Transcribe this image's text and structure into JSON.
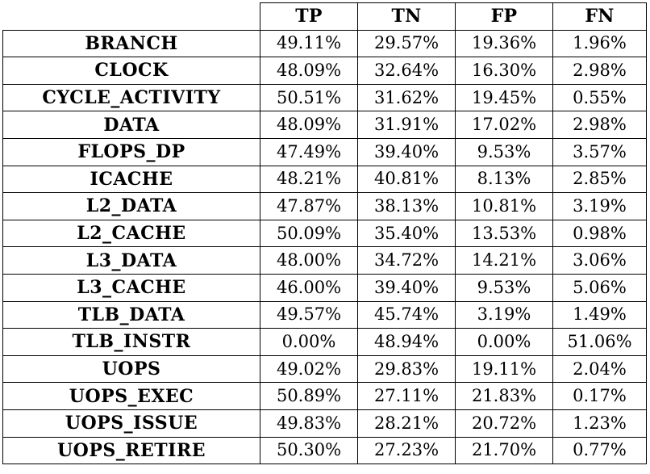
{
  "table": {
    "columns": [
      "",
      "TP",
      "TN",
      "FP",
      "FN"
    ],
    "rows": [
      {
        "metric": "BRANCH",
        "values": [
          "49.11%",
          "29.57%",
          "19.36%",
          "1.96%"
        ]
      },
      {
        "metric": "CLOCK",
        "values": [
          "48.09%",
          "32.64%",
          "16.30%",
          "2.98%"
        ]
      },
      {
        "metric": "CYCLE_ACTIVITY",
        "values": [
          "50.51%",
          "31.62%",
          "19.45%",
          "0.55%"
        ]
      },
      {
        "metric": "DATA",
        "values": [
          "48.09%",
          "31.91%",
          "17.02%",
          "2.98%"
        ]
      },
      {
        "metric": "FLOPS_DP",
        "values": [
          "47.49%",
          "39.40%",
          "9.53%",
          "3.57%"
        ]
      },
      {
        "metric": "ICACHE",
        "values": [
          "48.21%",
          "40.81%",
          "8.13%",
          "2.85%"
        ]
      },
      {
        "metric": "L2_DATA",
        "values": [
          "47.87%",
          "38.13%",
          "10.81%",
          "3.19%"
        ]
      },
      {
        "metric": "L2_CACHE",
        "values": [
          "50.09%",
          "35.40%",
          "13.53%",
          "0.98%"
        ]
      },
      {
        "metric": "L3_DATA",
        "values": [
          "48.00%",
          "34.72%",
          "14.21%",
          "3.06%"
        ]
      },
      {
        "metric": "L3_CACHE",
        "values": [
          "46.00%",
          "39.40%",
          "9.53%",
          "5.06%"
        ]
      },
      {
        "metric": "TLB_DATA",
        "values": [
          "49.57%",
          "45.74%",
          "3.19%",
          "1.49%"
        ]
      },
      {
        "metric": "TLB_INSTR",
        "values": [
          "0.00%",
          "48.94%",
          "0.00%",
          "51.06%"
        ]
      },
      {
        "metric": "UOPS",
        "values": [
          "49.02%",
          "29.83%",
          "19.11%",
          "2.04%"
        ]
      },
      {
        "metric": "UOPS_EXEC",
        "values": [
          "50.89%",
          "27.11%",
          "21.83%",
          "0.17%"
        ]
      },
      {
        "metric": "UOPS_ISSUE",
        "values": [
          "49.83%",
          "28.21%",
          "20.72%",
          "1.23%"
        ]
      },
      {
        "metric": "UOPS_RETIRE",
        "values": [
          "50.30%",
          "27.23%",
          "21.70%",
          "0.77%"
        ]
      }
    ]
  }
}
